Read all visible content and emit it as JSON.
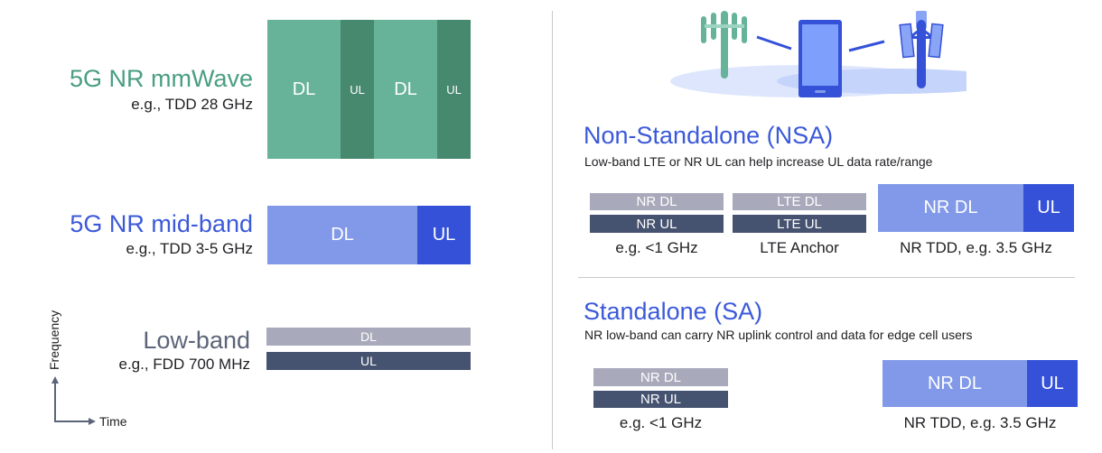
{
  "colors": {
    "mmwave_dl": "#67b399",
    "mmwave_ul": "#46896f",
    "mmwave_title": "#4a9e82",
    "mid_dl": "#8199e8",
    "mid_ul": "#3451d8",
    "blue_title": "#3b59d9",
    "low_dl": "#a8aabb",
    "low_ul": "#465370",
    "low_title": "#5b6478",
    "divider": "#c9c9c9"
  },
  "left": {
    "mmwave": {
      "title": "5G NR mmWave",
      "subtitle": "e.g., TDD 28 GHz",
      "blocks": [
        "DL",
        "UL",
        "DL",
        "UL"
      ]
    },
    "midband": {
      "title": "5G NR mid-band",
      "subtitle": "e.g., TDD 3-5 GHz",
      "blocks": [
        "DL",
        "UL"
      ]
    },
    "lowband": {
      "title": "Low-band",
      "subtitle": "e.g., FDD 700 MHz",
      "blocks": [
        "DL",
        "UL"
      ]
    },
    "axes": {
      "y": "Frequency",
      "x": "Time"
    }
  },
  "icons": [
    "cell-tower-green-icon",
    "smartphone-icon",
    "cell-tower-blue-icon"
  ],
  "nsa": {
    "title": "Non-Standalone (NSA)",
    "subtitle": "Low-band LTE or NR UL can help increase UL data rate/range",
    "groups": [
      {
        "dl": "NR DL",
        "ul": "NR UL",
        "caption": "e.g. <1 GHz"
      },
      {
        "dl": "LTE DL",
        "ul": "LTE UL",
        "caption": "LTE Anchor"
      },
      {
        "dl": "NR DL",
        "ul": "UL",
        "caption": "NR TDD, e.g. 3.5 GHz"
      }
    ]
  },
  "sa": {
    "title": "Standalone (SA)",
    "subtitle": "NR low-band can carry NR uplink control and data for edge cell users",
    "groups": [
      {
        "dl": "NR DL",
        "ul": "NR UL",
        "caption": "e.g. <1 GHz"
      },
      {
        "dl": "NR DL",
        "ul": "UL",
        "caption": "NR TDD, e.g. 3.5 GHz"
      }
    ]
  }
}
